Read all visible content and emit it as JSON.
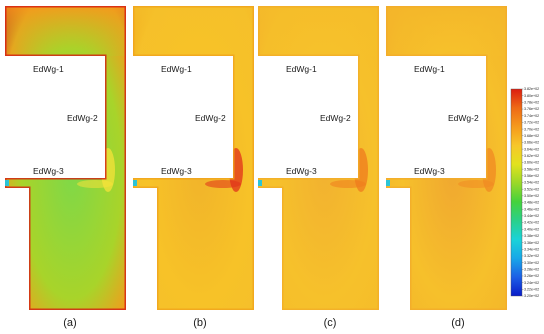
{
  "panels": [
    {
      "caption": "(a)",
      "edge_labels": [
        "EdWg-1",
        "EdWg-2",
        "EdWg-3"
      ],
      "colors": {
        "outer": "#d51a12",
        "mid": "#f59a1c",
        "inner": "#a8d42a",
        "core": "#7fd848",
        "hot": "#f6e23a"
      }
    },
    {
      "caption": "(b)",
      "edge_labels": [
        "EdWg-1",
        "EdWg-2",
        "EdWg-3"
      ],
      "colors": {
        "outer": "#f0a21c",
        "mid": "#f5c02a",
        "inner": "#f7c228",
        "core": "#f1b42a",
        "hot": "#e0311a"
      }
    },
    {
      "caption": "(c)",
      "edge_labels": [
        "EdWg-1",
        "EdWg-2",
        "EdWg-3"
      ],
      "colors": {
        "outer": "#f3ad28",
        "mid": "#f5bd2a",
        "inner": "#f6c12b",
        "core": "#f2b230",
        "hot": "#ef7b1e"
      }
    },
    {
      "caption": "(d)",
      "edge_labels": [
        "EdWg-1",
        "EdWg-2",
        "EdWg-3"
      ],
      "colors": {
        "outer": "#f2ab2a",
        "mid": "#f4b72a",
        "inner": "#f6c02b",
        "core": "#f0a830",
        "hot": "#f08a22"
      }
    }
  ],
  "colorbar": {
    "stops": [
      "#0a1cc8",
      "#1c5fe6",
      "#18a7e8",
      "#1ad3d8",
      "#2ad08a",
      "#45d23c",
      "#9ad828",
      "#e2e21e",
      "#f7c72a",
      "#f59a1c",
      "#ee6a16",
      "#dc1e10"
    ],
    "tick_labels": [
      "3.82e+02",
      "3.80e+02",
      "3.78e+02",
      "3.76e+02",
      "3.74e+02",
      "3.72e+02",
      "3.70e+02",
      "3.68e+02",
      "3.66e+02",
      "3.64e+02",
      "3.62e+02",
      "3.60e+02",
      "3.58e+02",
      "3.56e+02",
      "3.54e+02",
      "3.52e+02",
      "3.50e+02",
      "3.48e+02",
      "3.46e+02",
      "3.44e+02",
      "3.42e+02",
      "3.40e+02",
      "3.38e+02",
      "3.36e+02",
      "3.34e+02",
      "3.32e+02",
      "3.30e+02",
      "3.28e+02",
      "3.26e+02",
      "3.24e+02",
      "3.22e+02",
      "3.20e+02"
    ]
  }
}
